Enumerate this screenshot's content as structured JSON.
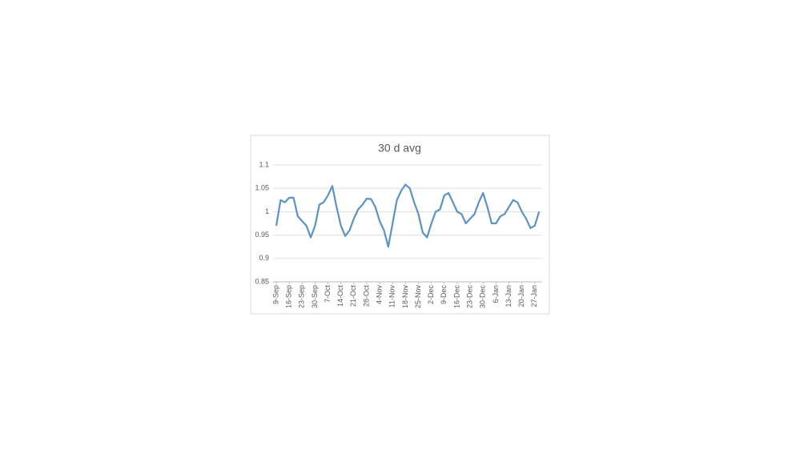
{
  "chart_data": {
    "type": "line",
    "title": "30 d avg",
    "categories": [
      "9-Sep",
      null,
      null,
      "16-Sep",
      null,
      null,
      "23-Sep",
      null,
      null,
      "30-Sep",
      null,
      null,
      "7-Oct",
      null,
      null,
      "14-Oct",
      null,
      null,
      "21-Oct",
      null,
      null,
      "28-Oct",
      null,
      null,
      "4-Nov",
      null,
      null,
      "11-Nov",
      null,
      null,
      "18-Nov",
      null,
      null,
      "25-Nov",
      null,
      null,
      "2-Dec",
      null,
      null,
      "9-Dec",
      null,
      null,
      "16-Dec",
      null,
      null,
      "23-Dec",
      null,
      null,
      "30-Dec",
      null,
      null,
      "6-Jan",
      null,
      null,
      "13-Jan",
      null,
      null,
      "20-Jan",
      null,
      null,
      "27-Jan",
      null
    ],
    "series": [
      {
        "color": "#5b93c4",
        "values": [
          0.97,
          1.025,
          1.02,
          1.03,
          1.03,
          0.99,
          0.98,
          0.97,
          0.945,
          0.97,
          1.015,
          1.02,
          1.035,
          1.055,
          1.01,
          0.97,
          0.948,
          0.96,
          0.985,
          1.005,
          1.015,
          1.028,
          1.027,
          1.01,
          0.98,
          0.96,
          0.925,
          0.975,
          1.025,
          1.045,
          1.058,
          1.05,
          1.02,
          0.995,
          0.955,
          0.945,
          0.975,
          1.0,
          1.005,
          1.035,
          1.04,
          1.02,
          1.0,
          0.995,
          0.975,
          0.985,
          0.995,
          1.02,
          1.04,
          1.01,
          0.975,
          0.975,
          0.99,
          0.995,
          1.01,
          1.025,
          1.02,
          1.0,
          0.985,
          0.965,
          0.97,
          1.0
        ]
      }
    ],
    "ylim": [
      0.85,
      1.1
    ],
    "yticks": [
      0.85,
      0.9,
      0.95,
      1,
      1.05,
      1.1
    ],
    "grid": true
  }
}
